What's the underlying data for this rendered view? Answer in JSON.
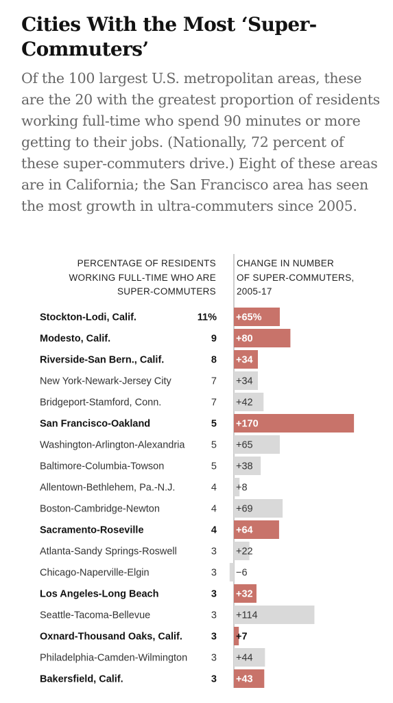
{
  "title": "Cities With the Most ‘Super-Commuters’",
  "subtitle": "Of the 100 largest U.S. metropolitan areas, these are the 20 with the greatest proportion of residents working full-time who spend 90 minutes or more getting to their jobs. (Nationally, 72 percent of these super-commuters drive.) Eight of these areas are in California; the San Francisco area has seen the most growth in ultra-commuters since 2005.",
  "columns": {
    "left": "PERCENTAGE OF RESIDENTS\nWORKING FULL-TIME WHO ARE\nSUPER-COMMUTERS",
    "right": "CHANGE IN NUMBER\nOF SUPER-COMMUTERS,\n2005-17"
  },
  "colors": {
    "highlight": "#c8736a",
    "default": "#d9d9d9",
    "text": "#121212",
    "muted": "#333333"
  },
  "chart_data": {
    "type": "bar",
    "categories": [
      "Stockton-Lodi, Calif.",
      "Modesto, Calif.",
      "Riverside-San Bern., Calif.",
      "New York-Newark-Jersey City",
      "Bridgeport-Stamford, Conn.",
      "San Francisco-Oakland",
      "Washington-Arlington-Alexandria",
      "Baltimore-Columbia-Towson",
      "Allentown-Bethlehem, Pa.-N.J.",
      "Boston-Cambridge-Newton",
      "Sacramento-Roseville",
      "Atlanta-Sandy Springs-Roswell",
      "Chicago-Naperville-Elgin",
      "Los Angeles-Long Beach",
      "Seattle-Tacoma-Bellevue",
      "Oxnard-Thousand Oaks, Calif.",
      "Philadelphia-Camden-Wilmington",
      "Bakersfield, Calif."
    ],
    "percent_labels": [
      "11%",
      "9",
      "8",
      "7",
      "7",
      "5",
      "5",
      "5",
      "4",
      "4",
      "4",
      "3",
      "3",
      "3",
      "3",
      "3",
      "3",
      "3"
    ],
    "percent": [
      11,
      9,
      8,
      7,
      7,
      5,
      5,
      5,
      4,
      4,
      4,
      3,
      3,
      3,
      3,
      3,
      3,
      3
    ],
    "change_labels": [
      "+65%",
      "+80",
      "+34",
      "+34",
      "+42",
      "+170",
      "+65",
      "+38",
      "+8",
      "+69",
      "+64",
      "+22",
      "−6",
      "+32",
      "+114",
      "+7",
      "+44",
      "+43"
    ],
    "change": [
      65,
      80,
      34,
      34,
      42,
      170,
      65,
      38,
      8,
      69,
      64,
      22,
      -6,
      32,
      114,
      7,
      44,
      43
    ],
    "highlight": [
      true,
      true,
      true,
      false,
      false,
      true,
      false,
      false,
      false,
      false,
      true,
      false,
      false,
      true,
      false,
      true,
      false,
      true
    ]
  }
}
